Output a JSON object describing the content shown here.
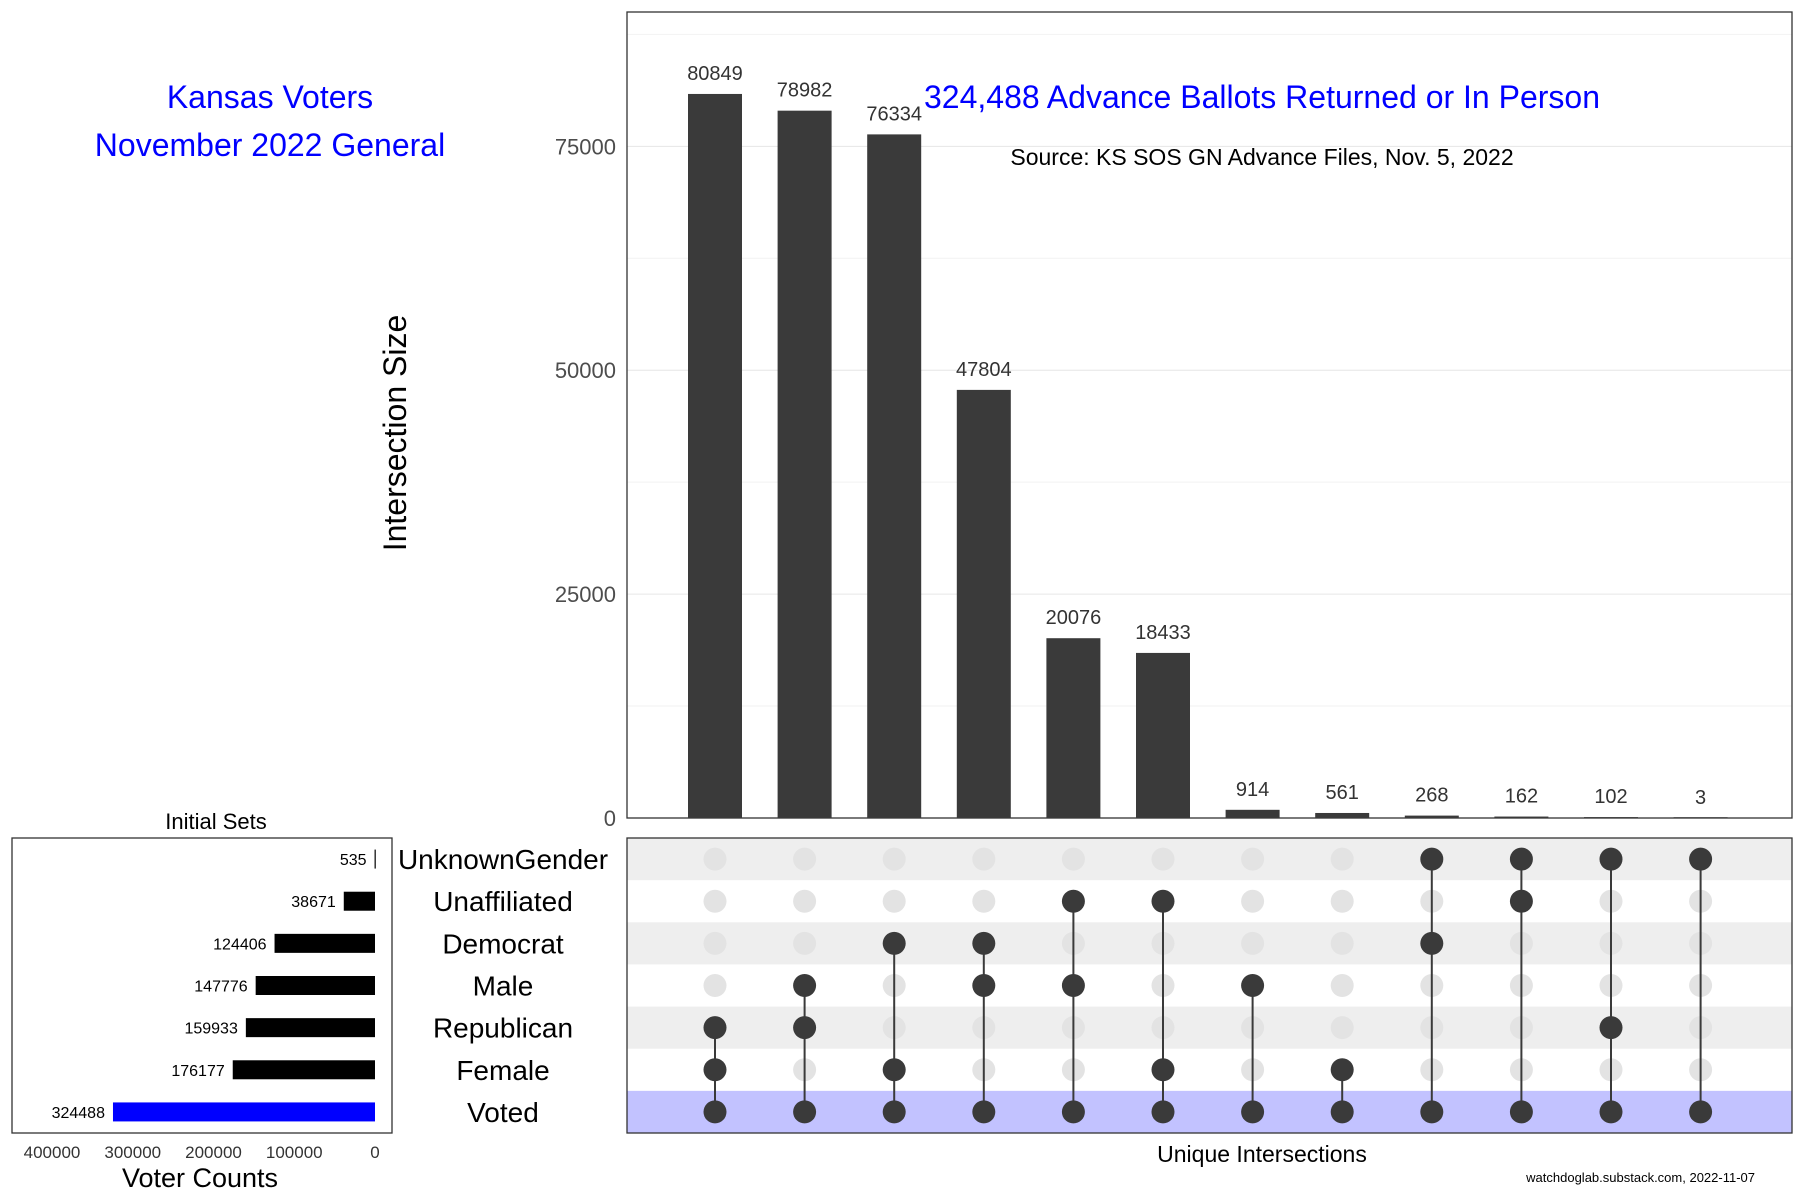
{
  "header": {
    "title_line1": "Kansas Voters",
    "title_line2": "November 2022 General",
    "plot_title": "324,488 Advance Ballots Returned or In Person",
    "source": "Source:  KS SOS GN Advance Files, Nov. 5, 2022",
    "footer": "watchdoglab.substack.com, 2022-11-07"
  },
  "colors": {
    "title": "#0000ff",
    "bar": "#3a3a3a",
    "dot_active": "#3a3a3a",
    "dot_inactive": "#e3e3e3",
    "stripe": "#eeeeee",
    "highlight_row": "#c2c2ff",
    "set_bar": "#000000",
    "set_bar_highlight": "#0000ff"
  },
  "chart_data": [
    {
      "type": "bar",
      "name": "intersections",
      "ylabel": "Intersection Size",
      "xlabel": "Unique Intersections",
      "ylim": [
        0,
        90000
      ],
      "yticks": [
        0,
        25000,
        50000,
        75000
      ],
      "grid": true,
      "values": [
        80849,
        78982,
        76334,
        47804,
        20076,
        18433,
        914,
        561,
        268,
        162,
        102,
        3
      ],
      "value_labels": [
        "80849",
        "78982",
        "76334",
        "47804",
        "20076",
        "18433",
        "914",
        "561",
        "268",
        "162",
        "102",
        "3"
      ],
      "combinations": [
        [
          "Voted",
          "Female",
          "Republican"
        ],
        [
          "Voted",
          "Republican",
          "Male"
        ],
        [
          "Voted",
          "Female",
          "Democrat"
        ],
        [
          "Voted",
          "Male",
          "Democrat"
        ],
        [
          "Voted",
          "Male",
          "Unaffiliated"
        ],
        [
          "Voted",
          "Female",
          "Unaffiliated"
        ],
        [
          "Voted",
          "Male"
        ],
        [
          "Voted",
          "Female"
        ],
        [
          "Voted",
          "Democrat",
          "UnknownGender"
        ],
        [
          "Voted",
          "Unaffiliated",
          "UnknownGender"
        ],
        [
          "Voted",
          "Republican",
          "UnknownGender"
        ],
        [
          "Voted",
          "UnknownGender"
        ]
      ]
    },
    {
      "type": "bar",
      "name": "set_sizes",
      "title": "Initial Sets",
      "xlabel": "Voter Counts",
      "xlim": [
        0,
        460000
      ],
      "xticks": [
        400000,
        300000,
        200000,
        100000,
        0
      ],
      "xtick_labels": [
        "400000",
        "300000",
        "200000",
        "100000",
        "0"
      ],
      "categories": [
        "UnknownGender",
        "Unaffiliated",
        "Democrat",
        "Male",
        "Republican",
        "Female",
        "Voted"
      ],
      "values": [
        535,
        38671,
        124406,
        147776,
        159933,
        176177,
        324488
      ],
      "value_labels": [
        "535",
        "38671",
        "124406",
        "147776",
        "159933",
        "176177",
        "324488"
      ],
      "highlight": "Voted"
    }
  ]
}
